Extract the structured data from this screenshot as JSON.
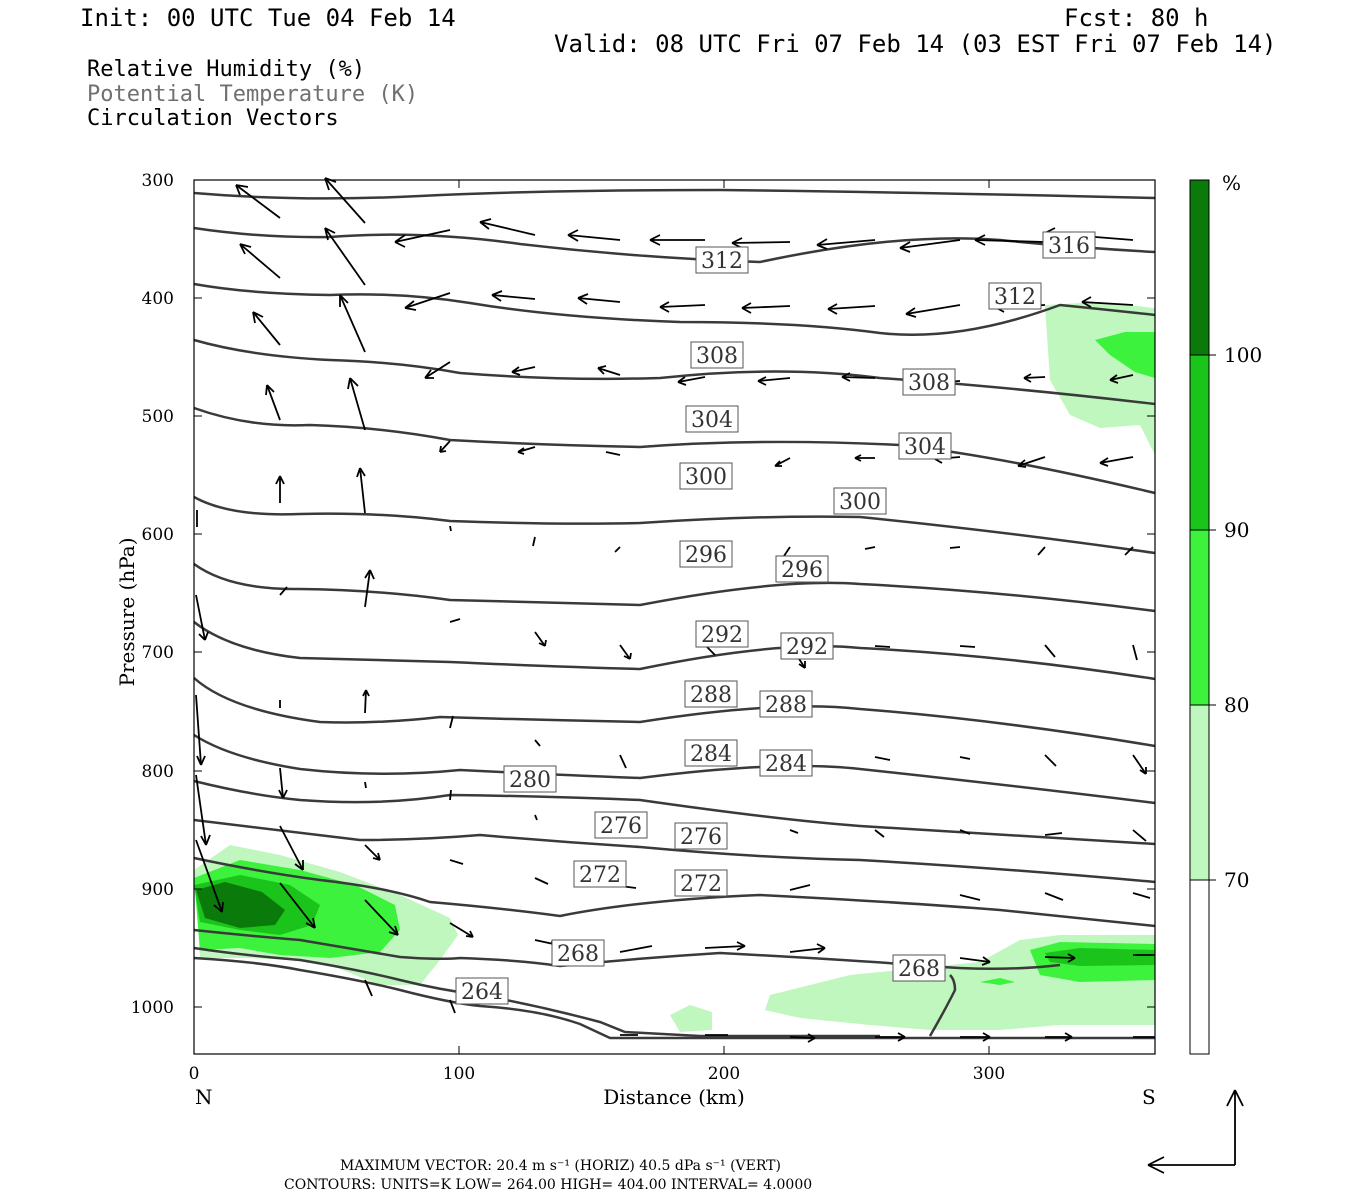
{
  "header": {
    "init": "Init: 00 UTC Tue 04 Feb 14",
    "fcst": "Fcst:   80 h",
    "valid": "Valid: 08 UTC Fri 07 Feb 14 (03 EST Fri 07 Feb 14)"
  },
  "legend": {
    "rh": "Relative Humidity (%)",
    "theta": "Potential Temperature (K)",
    "vectors": "Circulation Vectors"
  },
  "axes": {
    "xlabel": "Distance (km)",
    "ylabel": "Pressure (hPa)",
    "left_end": "N",
    "right_end": "S",
    "xticks": [
      "0",
      "100",
      "200",
      "300"
    ],
    "yticks": [
      "300",
      "400",
      "500",
      "600",
      "700",
      "800",
      "900",
      "1000"
    ]
  },
  "colorbar": {
    "unit": "%",
    "levels": [
      "100",
      "90",
      "80",
      "70"
    ],
    "colors": [
      "#0a7a0a",
      "#1bc41b",
      "#3cf23c",
      "#bff7bf",
      "#ffffff"
    ]
  },
  "footer": {
    "max_vector": "MAXIMUM VECTOR:  20.4 m s⁻¹ (HORIZ)        40.5 dPa s⁻¹ (VERT)",
    "contours": "CONTOURS:  UNITS=K  LOW=  264.00       HIGH=  404.00       INTERVAL=    4.0000"
  },
  "chart_data": {
    "type": "contour",
    "x_range_km": [
      0,
      360
    ],
    "y_range_hpa": [
      300,
      1040
    ],
    "contour_labels": [
      {
        "label": "316",
        "x_km": 329,
        "p_hpa": 355
      },
      {
        "label": "312",
        "x_km": 197,
        "p_hpa": 368
      },
      {
        "label": "312",
        "x_km": 308,
        "p_hpa": 399
      },
      {
        "label": "308",
        "x_km": 196,
        "p_hpa": 448
      },
      {
        "label": "308",
        "x_km": 276,
        "p_hpa": 471
      },
      {
        "label": "304",
        "x_km": 194,
        "p_hpa": 502
      },
      {
        "label": "304",
        "x_km": 275,
        "p_hpa": 525
      },
      {
        "label": "300",
        "x_km": 192,
        "p_hpa": 552
      },
      {
        "label": "300",
        "x_km": 249,
        "p_hpa": 573
      },
      {
        "label": "296",
        "x_km": 192,
        "p_hpa": 617
      },
      {
        "label": "296",
        "x_km": 226,
        "p_hpa": 630
      },
      {
        "label": "292",
        "x_km": 198,
        "p_hpa": 685
      },
      {
        "label": "292",
        "x_km": 229,
        "p_hpa": 695
      },
      {
        "label": "288",
        "x_km": 194,
        "p_hpa": 741
      },
      {
        "label": "288",
        "x_km": 222,
        "p_hpa": 749
      },
      {
        "label": "284",
        "x_km": 194,
        "p_hpa": 792
      },
      {
        "label": "284",
        "x_km": 222,
        "p_hpa": 801
      },
      {
        "label": "280",
        "x_km": 126,
        "p_hpa": 806
      },
      {
        "label": "276",
        "x_km": 160,
        "p_hpa": 851
      },
      {
        "label": "276",
        "x_km": 190,
        "p_hpa": 860
      },
      {
        "label": "272",
        "x_km": 152,
        "p_hpa": 883
      },
      {
        "label": "272",
        "x_km": 190,
        "p_hpa": 891
      },
      {
        "label": "268",
        "x_km": 144,
        "p_hpa": 956
      },
      {
        "label": "268",
        "x_km": 272,
        "p_hpa": 969
      },
      {
        "label": "264",
        "x_km": 108,
        "p_hpa": 992
      }
    ]
  }
}
